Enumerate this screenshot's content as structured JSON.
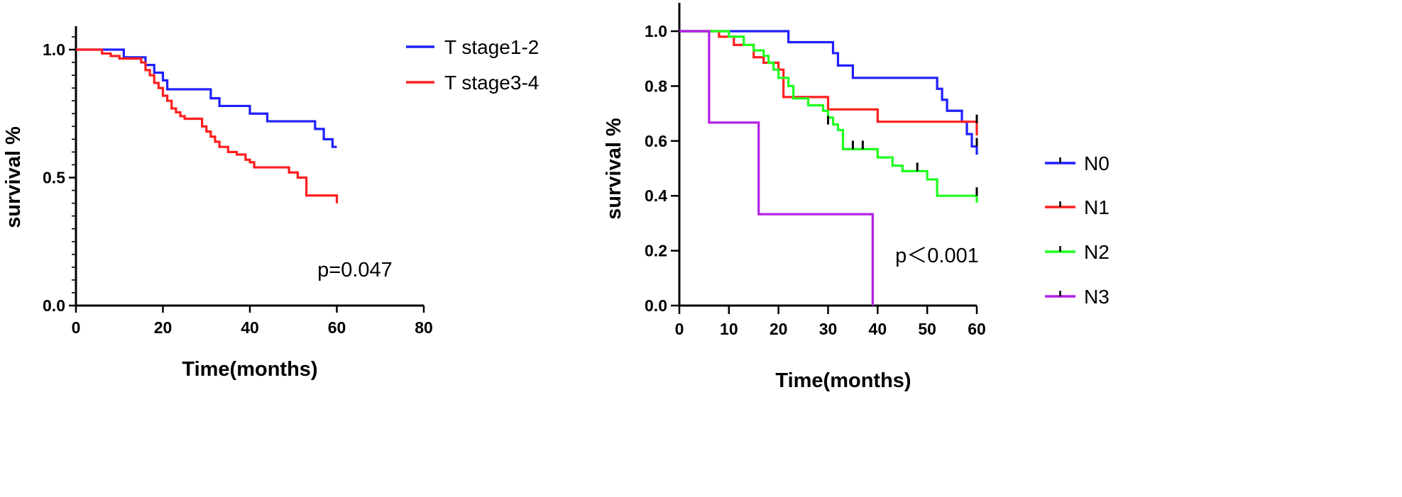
{
  "chart_data": [
    {
      "type": "line",
      "style": "kaplan-meier step",
      "xlabel": "Time(months)",
      "ylabel": "survival %",
      "xlim": [
        0,
        80
      ],
      "ylim": [
        0,
        1.0
      ],
      "x_ticks": [
        0,
        20,
        40,
        60,
        80
      ],
      "y_ticks": [
        0.0,
        0.5,
        1.0
      ],
      "x_tick_labels": [
        "0",
        "20",
        "40",
        "60",
        "80"
      ],
      "y_tick_labels": [
        "0.0",
        "0.5",
        "1.0"
      ],
      "annotation": "p=0.047",
      "legend_position": "top-right",
      "series": [
        {
          "name": "T stage1-2",
          "color": "#1f1fff",
          "x": [
            0,
            11,
            16,
            18,
            20,
            21,
            31,
            33,
            37,
            40,
            44,
            55,
            57,
            59,
            60
          ],
          "y": [
            1.0,
            0.97,
            0.94,
            0.91,
            0.88,
            0.845,
            0.81,
            0.78,
            0.78,
            0.75,
            0.72,
            0.69,
            0.65,
            0.62,
            0.62
          ]
        },
        {
          "name": "T stage3-4",
          "color": "#ff1f1f",
          "x": [
            0,
            6,
            8,
            10,
            15,
            16,
            17,
            18,
            19,
            20,
            21,
            22,
            23,
            24,
            25,
            29,
            30,
            31,
            32,
            33,
            35,
            37,
            39,
            40,
            41,
            42,
            44,
            47,
            49,
            51,
            53,
            56,
            60
          ],
          "y": [
            1.0,
            0.985,
            0.975,
            0.965,
            0.95,
            0.92,
            0.9,
            0.87,
            0.85,
            0.82,
            0.8,
            0.77,
            0.755,
            0.74,
            0.73,
            0.7,
            0.68,
            0.66,
            0.64,
            0.62,
            0.6,
            0.59,
            0.57,
            0.56,
            0.54,
            0.54,
            0.54,
            0.54,
            0.52,
            0.5,
            0.43,
            0.43,
            0.4
          ]
        }
      ]
    },
    {
      "type": "line",
      "style": "kaplan-meier step",
      "xlabel": "Time(months)",
      "ylabel": "survival %",
      "xlim": [
        0,
        60
      ],
      "ylim": [
        0,
        1.0
      ],
      "x_ticks": [
        0,
        10,
        20,
        30,
        40,
        50,
        60
      ],
      "y_ticks": [
        0.0,
        0.2,
        0.4,
        0.6,
        0.8,
        1.0
      ],
      "x_tick_labels": [
        "0",
        "10",
        "20",
        "30",
        "40",
        "50",
        "60"
      ],
      "y_tick_labels": [
        "0.0",
        "0.2",
        "0.4",
        "0.6",
        "0.8",
        "1.0"
      ],
      "annotation": "p＜0.001",
      "legend_position": "right",
      "series": [
        {
          "name": "N0",
          "color": "#1f1fff",
          "x": [
            0,
            22,
            31,
            32,
            35,
            52,
            53,
            54,
            57,
            58,
            59,
            60
          ],
          "y": [
            1.0,
            0.96,
            0.92,
            0.875,
            0.83,
            0.79,
            0.75,
            0.71,
            0.67,
            0.625,
            0.58,
            0.55
          ],
          "censored": [
            [
              60,
              0.58
            ]
          ]
        },
        {
          "name": "N1",
          "color": "#ff1f1f",
          "x": [
            0,
            8,
            11,
            15,
            17,
            20,
            21,
            30,
            40,
            60
          ],
          "y": [
            1.0,
            0.98,
            0.95,
            0.905,
            0.885,
            0.86,
            0.76,
            0.715,
            0.67,
            0.62
          ],
          "censored": [
            [
              60,
              0.665
            ]
          ]
        },
        {
          "name": "N2",
          "color": "#1fff1f",
          "x": [
            0,
            10,
            13,
            15,
            17,
            18,
            19,
            20,
            22,
            23,
            26,
            29,
            30,
            31,
            32,
            33,
            38,
            40,
            43,
            45,
            48,
            50,
            52,
            60
          ],
          "y": [
            1.0,
            0.98,
            0.95,
            0.93,
            0.91,
            0.885,
            0.86,
            0.83,
            0.8,
            0.755,
            0.73,
            0.71,
            0.685,
            0.66,
            0.64,
            0.57,
            0.57,
            0.54,
            0.51,
            0.49,
            0.49,
            0.46,
            0.4,
            0.375
          ],
          "censored": [
            [
              30,
              0.66
            ],
            [
              35,
              0.57
            ],
            [
              37,
              0.57
            ],
            [
              48,
              0.49
            ],
            [
              60,
              0.4
            ]
          ]
        },
        {
          "name": "N3",
          "color": "#b21fe6",
          "x": [
            0,
            6,
            16,
            39,
            39
          ],
          "y": [
            1.0,
            0.667,
            0.333,
            0.333,
            0.0
          ],
          "censored": []
        }
      ]
    }
  ]
}
